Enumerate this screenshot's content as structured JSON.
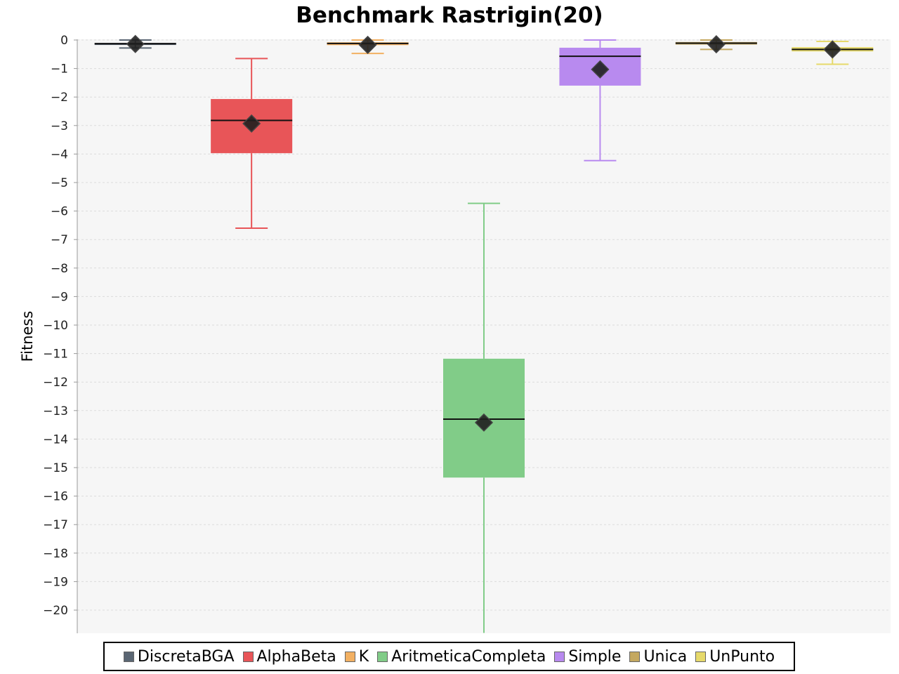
{
  "chart_data": {
    "type": "box",
    "title": "Benchmark Rastrigin(20)",
    "xlabel": "",
    "ylabel": "Fitness",
    "ylim": [
      -20.8,
      0
    ],
    "yticks": [
      0,
      -1,
      -2,
      -3,
      -4,
      -5,
      -6,
      -7,
      -8,
      -9,
      -10,
      -11,
      -12,
      -13,
      -14,
      -15,
      -16,
      -17,
      -18,
      -19,
      -20
    ],
    "grid": true,
    "legend_position": "bottom",
    "series": [
      {
        "name": "DiscretaBGA",
        "color": "#5a6673",
        "whisker_low": -0.28,
        "q1": -0.15,
        "median": -0.13,
        "q3": -0.1,
        "whisker_high": 0.0,
        "mean": -0.14
      },
      {
        "name": "AlphaBeta",
        "color": "#e85558",
        "whisker_low": -6.6,
        "q1": -3.97,
        "median": -2.82,
        "q3": -2.07,
        "whisker_high": -0.65,
        "mean": -2.93
      },
      {
        "name": "K",
        "color": "#f2b062",
        "whisker_low": -0.47,
        "q1": -0.18,
        "median": -0.12,
        "q3": -0.08,
        "whisker_high": 0.0,
        "mean": -0.17
      },
      {
        "name": "AritmeticaCompleta",
        "color": "#81cc88",
        "whisker_low": -20.8,
        "q1": -15.35,
        "median": -13.3,
        "q3": -11.18,
        "whisker_high": -5.73,
        "mean": -13.42
      },
      {
        "name": "Simple",
        "color": "#b88aef",
        "whisker_low": -4.23,
        "q1": -1.6,
        "median": -0.57,
        "q3": -0.27,
        "whisker_high": 0.0,
        "mean": -1.03
      },
      {
        "name": "Unica",
        "color": "#c4a860",
        "whisker_low": -0.33,
        "q1": -0.16,
        "median": -0.11,
        "q3": -0.07,
        "whisker_high": 0.0,
        "mean": -0.15
      },
      {
        "name": "UnPunto",
        "color": "#e6d96a",
        "whisker_low": -0.85,
        "q1": -0.4,
        "median": -0.33,
        "q3": -0.25,
        "whisker_high": -0.05,
        "mean": -0.33
      }
    ]
  }
}
